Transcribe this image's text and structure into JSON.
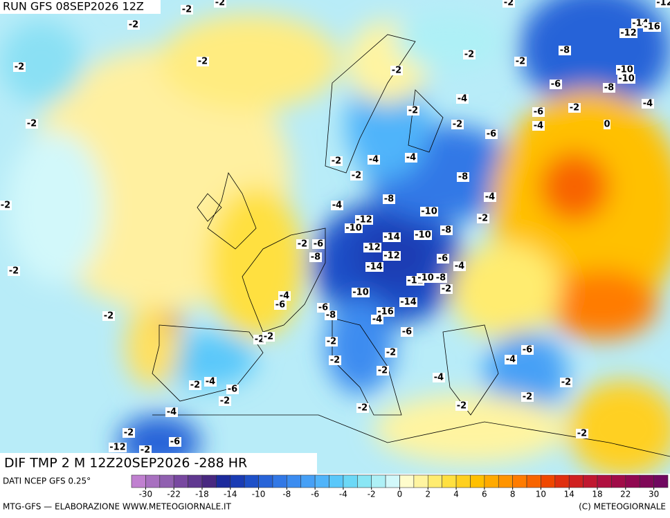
{
  "header": {
    "run": "RUN GFS 08SEP2026 12Z"
  },
  "map": {
    "contour_labels": [
      -2,
      -2,
      -2,
      -2,
      -2,
      -2,
      -2,
      -2,
      -2,
      -2,
      -2,
      -8,
      -6,
      -10,
      -10,
      -8,
      -2,
      -4,
      -6,
      -4,
      0,
      -2,
      -4,
      -2,
      -6,
      -2,
      -4,
      -4,
      -2,
      -8,
      -4,
      -4,
      -8,
      -10,
      -2,
      -12,
      -10,
      -14,
      -10,
      -8,
      -2,
      -6,
      -8,
      -12,
      -12,
      -6,
      -4,
      -14,
      -12,
      -10,
      -8,
      -2,
      -10,
      -4,
      -6,
      -14,
      -6,
      -8,
      -16,
      -4,
      -6,
      -2,
      -2,
      -2,
      -2,
      -2,
      -6,
      -4,
      -2,
      -4,
      -2,
      -4,
      -6,
      -2,
      -2,
      -2,
      -2,
      -4,
      -2,
      -2,
      -6,
      -12,
      -2,
      -2,
      -14,
      -12,
      -16,
      -2,
      -12,
      -2
    ]
  },
  "footer": {
    "title": "DIF TMP 2 M 12Z20SEP2026 -288 HR",
    "source": "DATI NCEP GFS 0.25°",
    "credit": "MTG-GFS — ELABORAZIONE WWW.METEOGIORNALE.IT",
    "copyright": "(C) METEOGIORNALE"
  },
  "colorbar": {
    "ticks": [
      -30,
      -22,
      -18,
      -14,
      -10,
      -8,
      -6,
      -4,
      -2,
      0,
      2,
      4,
      6,
      8,
      10,
      14,
      18,
      22,
      30
    ],
    "colors": [
      "#c080d0",
      "#a870c0",
      "#9060b0",
      "#7848a0",
      "#603890",
      "#482880",
      "#1c2a9c",
      "#1a3cb4",
      "#1e50c8",
      "#2864d8",
      "#3278e6",
      "#3c8cf0",
      "#46a0f6",
      "#50b4fa",
      "#5ac8fa",
      "#6cd8f6",
      "#8ae6f4",
      "#aef0f6",
      "#d2f8fa",
      "#fffccc",
      "#fff4a0",
      "#ffec70",
      "#ffe040",
      "#ffd020",
      "#ffc000",
      "#ffaa00",
      "#ff9400",
      "#ff7c00",
      "#f86400",
      "#f04800",
      "#e03010",
      "#d02020",
      "#c01830",
      "#b01040",
      "#a00c48",
      "#900850",
      "#800858",
      "#700860"
    ]
  }
}
